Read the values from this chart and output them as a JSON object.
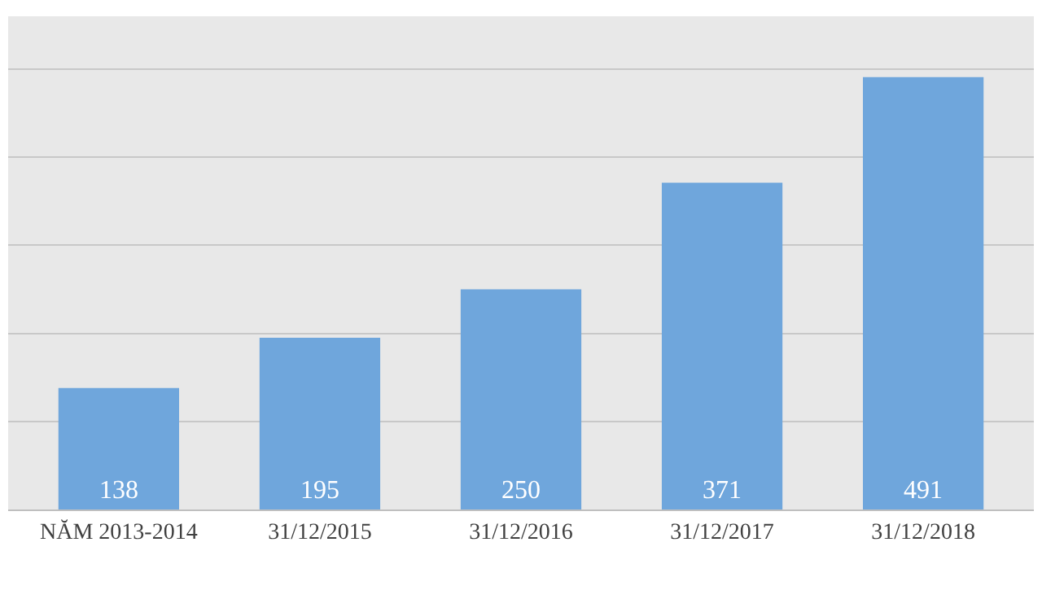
{
  "chart_data": {
    "type": "bar",
    "categories": [
      "NĂM 2013-2014",
      "31/12/2015",
      "31/12/2016",
      "31/12/2017",
      "31/12/2018"
    ],
    "values": [
      138,
      195,
      250,
      371,
      491
    ],
    "color": "#6fa6dc",
    "ylim": [
      0,
      560
    ],
    "yticks": [
      {
        "value": 0,
        "label": null
      },
      {
        "value": 100,
        "label": null
      },
      {
        "value": 200,
        "label": null
      },
      {
        "value": 300,
        "label": null
      },
      {
        "value": 400,
        "label": null
      },
      {
        "value": 500,
        "label": null
      }
    ],
    "grid": "y",
    "data_labels": true,
    "tick_labels": "x"
  }
}
